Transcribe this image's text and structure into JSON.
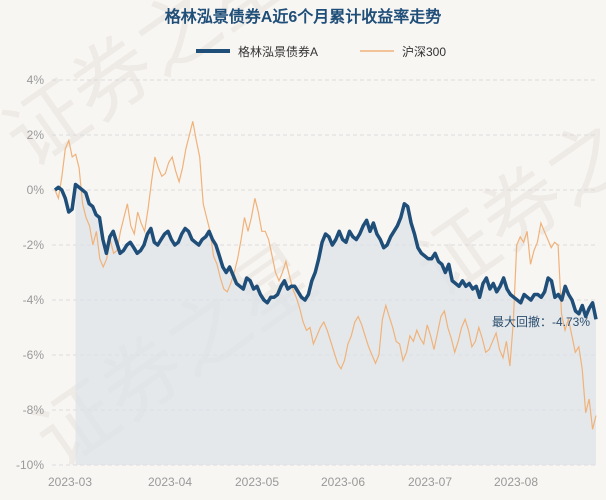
{
  "chart_data": {
    "type": "line",
    "title": "格林泓景债券A近6个月累计收益率走势",
    "xlabel": "",
    "ylabel": "",
    "ylim": [
      -10,
      4
    ],
    "y_ticks": [
      "4%",
      "2%",
      "0%",
      "-2%",
      "-4%",
      "-6%",
      "-8%",
      "-10%"
    ],
    "x_ticks": [
      "2023-03",
      "2023-04",
      "2023-05",
      "2023-06",
      "2023-07",
      "2023-08"
    ],
    "grid": true,
    "legend": "top-center",
    "annotation": "最大回撤：-4.73%",
    "watermark": "证券之星",
    "colors": {
      "fund": "#1f4e79",
      "index": "#f0b27a",
      "fill": "#dde3e8",
      "title": "#1f4e79"
    },
    "series": [
      {
        "name": "格林泓景债券A",
        "values": [
          0,
          0.1,
          0,
          -0.3,
          -0.8,
          -0.7,
          0.2,
          0.1,
          0,
          -0.1,
          -0.5,
          -0.6,
          -0.9,
          -1.0,
          -1.8,
          -2.3,
          -1.7,
          -1.5,
          -1.9,
          -2.3,
          -2.2,
          -2.0,
          -1.9,
          -2.1,
          -2.3,
          -2.2,
          -2.0,
          -1.6,
          -1.4,
          -1.9,
          -2.0,
          -1.8,
          -1.6,
          -1.5,
          -1.8,
          -2.0,
          -1.9,
          -1.6,
          -1.4,
          -1.5,
          -1.8,
          -1.9,
          -2.0,
          -1.8,
          -1.7,
          -1.5,
          -1.8,
          -2.0,
          -2.4,
          -2.8,
          -3.0,
          -2.8,
          -3.1,
          -3.4,
          -3.5,
          -3.6,
          -3.2,
          -3.3,
          -3.6,
          -3.5,
          -3.8,
          -4.0,
          -4.1,
          -3.9,
          -3.9,
          -3.8,
          -3.5,
          -3.3,
          -3.6,
          -3.5,
          -3.5,
          -3.7,
          -3.9,
          -4.0,
          -3.8,
          -3.3,
          -3.0,
          -2.5,
          -1.9,
          -1.6,
          -1.7,
          -2.0,
          -1.8,
          -1.5,
          -1.8,
          -1.9,
          -1.5,
          -1.7,
          -1.8,
          -1.6,
          -1.3,
          -1.1,
          -1.5,
          -1.2,
          -1.6,
          -1.8,
          -2.1,
          -2.0,
          -1.7,
          -1.5,
          -1.3,
          -1.0,
          -0.5,
          -0.6,
          -1.2,
          -1.6,
          -2.1,
          -2.3,
          -2.4,
          -2.5,
          -2.5,
          -2.3,
          -2.6,
          -2.7,
          -3.0,
          -2.7,
          -3.3,
          -3.4,
          -3.5,
          -3.3,
          -3.5,
          -3.4,
          -3.6,
          -3.5,
          -3.9,
          -3.4,
          -3.2,
          -3.6,
          -3.4,
          -3.7,
          -3.5,
          -3.2,
          -3.6,
          -3.8,
          -3.9,
          -4.0,
          -4.1,
          -3.8,
          -3.9,
          -4.0,
          -3.8,
          -3.8,
          -3.9,
          -3.7,
          -3.2,
          -3.3,
          -3.9,
          -3.8,
          -4.0,
          -3.5,
          -3.8,
          -4.0,
          -4.4,
          -4.5,
          -4.2,
          -4.6,
          -4.3,
          -4.1,
          -4.7
        ]
      },
      {
        "name": "沪深300",
        "values": [
          0,
          -0.3,
          0.5,
          1.5,
          1.8,
          1.2,
          1.3,
          0.8,
          -0.5,
          -1.0,
          -1.3,
          -2.0,
          -1.5,
          -2.5,
          -2.8,
          -2.5,
          -1.8,
          -2.3,
          -2.2,
          -1.5,
          -1.0,
          -0.5,
          -1.3,
          -1.6,
          -0.8,
          -1.2,
          -1.5,
          -0.7,
          0.3,
          1.2,
          0.8,
          0.5,
          0.6,
          1.0,
          1.2,
          0.7,
          0.3,
          0.8,
          1.5,
          2.0,
          2.5,
          1.8,
          1.2,
          -0.5,
          -1.0,
          -1.5,
          -2.4,
          -2.7,
          -3.2,
          -3.6,
          -3.7,
          -3.4,
          -3.0,
          -2.5,
          -1.8,
          -1.0,
          -1.5,
          -1.0,
          -0.3,
          -0.8,
          -1.5,
          -1.5,
          -1.8,
          -2.4,
          -3.0,
          -3.3,
          -3.0,
          -2.6,
          -3.1,
          -3.6,
          -3.9,
          -4.3,
          -4.8,
          -5.1,
          -5.0,
          -5.6,
          -5.3,
          -5.0,
          -4.8,
          -5.1,
          -5.5,
          -5.9,
          -6.3,
          -6.5,
          -6.2,
          -5.6,
          -5.3,
          -4.8,
          -4.6,
          -4.9,
          -5.3,
          -5.7,
          -6.0,
          -6.3,
          -6.0,
          -4.7,
          -4.2,
          -4.6,
          -5.0,
          -5.5,
          -5.6,
          -6.2,
          -5.9,
          -5.3,
          -5.5,
          -5.1,
          -5.4,
          -5.6,
          -4.9,
          -5.3,
          -5.8,
          -5.2,
          -4.6,
          -4.4,
          -5.0,
          -5.4,
          -5.9,
          -5.5,
          -5.0,
          -4.7,
          -5.1,
          -5.7,
          -5.5,
          -5.0,
          -5.4,
          -5.9,
          -5.8,
          -5.5,
          -5.2,
          -5.8,
          -6.1,
          -5.5,
          -6.4,
          -4.8,
          -2.0,
          -1.7,
          -1.9,
          -1.5,
          -2.7,
          -2.2,
          -1.9,
          -1.2,
          -1.5,
          -1.8,
          -2.1,
          -1.9,
          -2.0,
          -4.5,
          -5.1,
          -4.7,
          -5.3,
          -5.9,
          -5.7,
          -6.5,
          -8.1,
          -7.6,
          -8.7,
          -8.2
        ]
      }
    ]
  }
}
